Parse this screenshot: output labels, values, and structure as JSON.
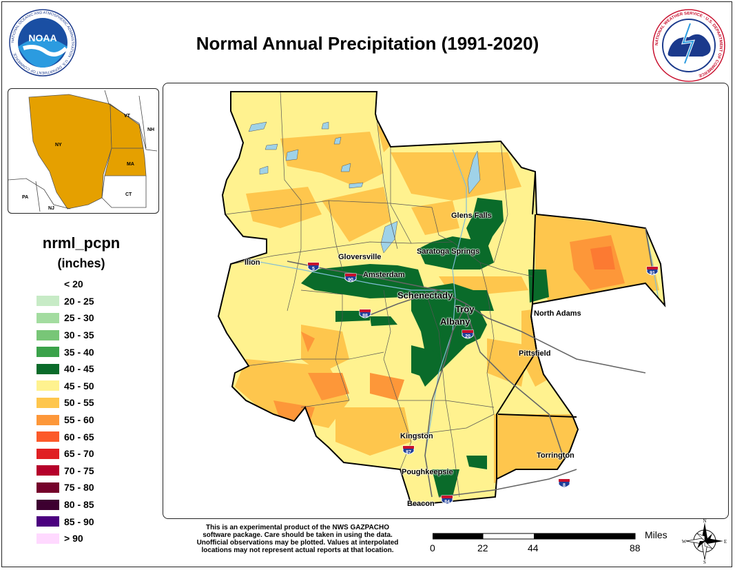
{
  "title": "Normal Annual Precipitation (1991-2020)",
  "logos": {
    "noaa_text": "NOAA",
    "noaa_ring": "NATIONAL OCEANIC AND ATMOSPHERIC ADMINISTRATION · U.S. DEPARTMENT OF COMMERCE",
    "nws_ring": "NATIONAL WEATHER SERVICE · U.S. DEPARTMENT OF COMMERCE"
  },
  "inset": {
    "states": [
      "NY",
      "VT",
      "NH",
      "MA",
      "CT",
      "PA",
      "NJ"
    ]
  },
  "legend": {
    "title": "nrml_pcpn",
    "units": "(inches)",
    "items": [
      {
        "label": "< 20",
        "color": "#ffffff"
      },
      {
        "label": "20 - 25",
        "color": "#c7ebc6"
      },
      {
        "label": "25 - 30",
        "color": "#a3dca0"
      },
      {
        "label": "30 - 35",
        "color": "#78c677"
      },
      {
        "label": "35 - 40",
        "color": "#3aa24a"
      },
      {
        "label": "40 - 45",
        "color": "#0a6b2a"
      },
      {
        "label": "45 - 50",
        "color": "#fff28f"
      },
      {
        "label": "50 - 55",
        "color": "#fec64d"
      },
      {
        "label": "55 - 60",
        "color": "#fd9739"
      },
      {
        "label": "60 - 65",
        "color": "#fc5a2a"
      },
      {
        "label": "65 - 70",
        "color": "#e01f23"
      },
      {
        "label": "70 - 75",
        "color": "#b5002a"
      },
      {
        "label": "75 - 80",
        "color": "#74002a"
      },
      {
        "label": "80 - 85",
        "color": "#3d0030"
      },
      {
        "label": "85 - 90",
        "color": "#4b007f"
      },
      {
        "label": "> 90",
        "color": "#ffd9ff"
      }
    ]
  },
  "cities": {
    "glens_falls": "Glens Falls",
    "saratoga": "Saratoga Springs",
    "gloversville": "Gloversville",
    "ilion": "Ilion",
    "amsterdam": "Amsterdam",
    "schenectady": "Schenectady",
    "troy": "Troy",
    "albany": "Albany",
    "north_adams": "North Adams",
    "pittsfield": "Pittsfield",
    "kingston": "Kingston",
    "poughkeepsie": "Poughkeepsie",
    "beacon": "Beacon",
    "torrington": "Torrington"
  },
  "shields": {
    "i5": "5",
    "i90": "90",
    "i88": "88",
    "i20": "20",
    "i87": "87",
    "i84": "84",
    "i8": "8",
    "i91": "91"
  },
  "disclaimer": {
    "line1": "This is an experimental product of the NWS GAZPACHO",
    "line2": "software package. Care should be taken in using the data.",
    "line3": "Unofficial observations may be plotted. Values at interpolated",
    "line4": "locations may not represent actual reports at that location."
  },
  "scale": {
    "unit": "Miles",
    "ticks": [
      "0",
      "22",
      "44",
      "88"
    ]
  },
  "compass": {
    "n": "N",
    "s": "S",
    "e": "E",
    "w": "W"
  }
}
